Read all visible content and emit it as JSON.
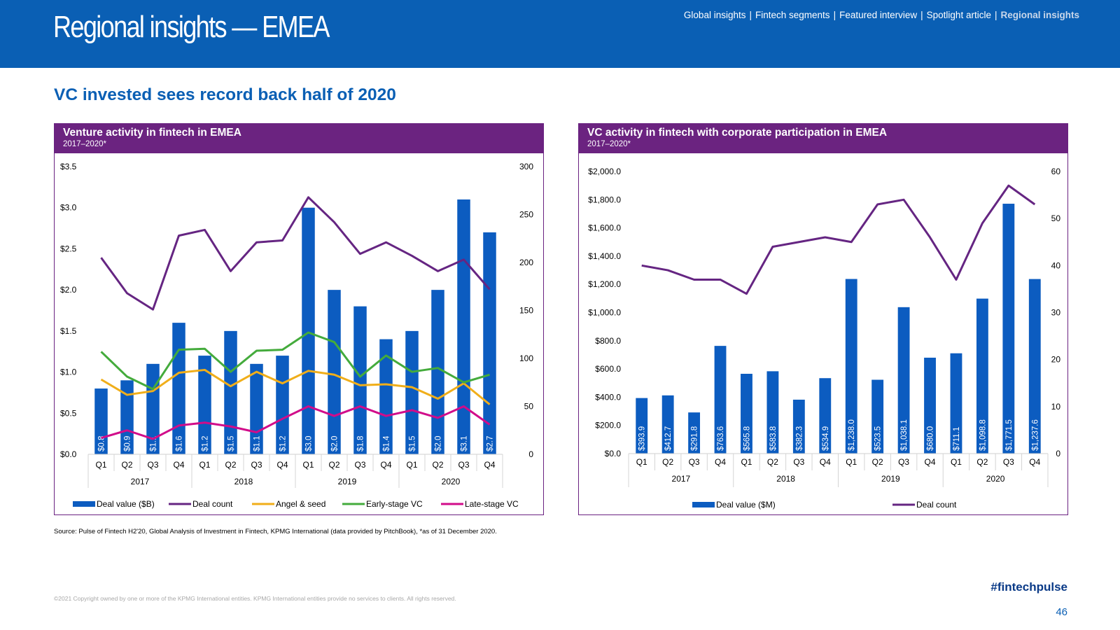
{
  "header": {
    "title": "Regional insights — EMEA",
    "nav": [
      {
        "label": "Global insights",
        "active": false
      },
      {
        "label": "Fintech segments",
        "active": false
      },
      {
        "label": "Featured interview",
        "active": false
      },
      {
        "label": "Spotlight article",
        "active": false
      },
      {
        "label": "Regional insights",
        "active": true
      }
    ],
    "nav_separator": "|"
  },
  "subtitle": "VC invested sees record back half of 2020",
  "panels": {
    "left": {
      "title": "Venture activity in fintech in EMEA",
      "subtitle": "2017–2020*"
    },
    "right": {
      "title": "VC activity in fintech with corporate participation in EMEA",
      "subtitle": "2017–2020*"
    }
  },
  "footer": {
    "source": "Source: Pulse of Fintech H2'20, Global Analysis of Investment in Fintech, KPMG International (data provided by PitchBook), *as of 31 December 2020.",
    "copyright": "©2021 Copyright owned by one or more of the KPMG International entities. KPMG International entities provide no services to clients. All rights reserved.",
    "hashtag": "#fintechpulse",
    "page_number": "46"
  },
  "colors": {
    "brand_blue": "#0a5fb4",
    "panel_purple": "#6b2380",
    "bar_blue": "#0c5cc0",
    "deal_count": "#652582",
    "angel_seed": "#f0ae1a",
    "early_stage": "#44ab3c",
    "late_stage": "#d10c8a"
  },
  "chart_data": [
    {
      "type": "bar",
      "categories": [
        "Q1",
        "Q2",
        "Q3",
        "Q4",
        "Q1",
        "Q2",
        "Q3",
        "Q4",
        "Q1",
        "Q2",
        "Q3",
        "Q4",
        "Q1",
        "Q2",
        "Q3",
        "Q4"
      ],
      "groups": [
        "2017",
        "2018",
        "2019",
        "2020"
      ],
      "y_left": {
        "ticks": [
          "$0.0",
          "$0.5",
          "$1.0",
          "$1.5",
          "$2.0",
          "$2.5",
          "$3.0",
          "$3.5"
        ],
        "range": [
          0,
          3.5
        ]
      },
      "y_right": {
        "ticks": [
          "0",
          "50",
          "100",
          "150",
          "200",
          "250",
          "300"
        ],
        "range": [
          0,
          300
        ]
      },
      "bars": {
        "name": "Deal value ($B)",
        "values": [
          0.8,
          0.9,
          1.1,
          1.6,
          1.2,
          1.5,
          1.1,
          1.2,
          3.0,
          2.0,
          1.8,
          1.4,
          1.5,
          2.0,
          3.1,
          2.7
        ],
        "labels": [
          "$0.8",
          "$0.9",
          "$1.1",
          "$1.6",
          "$1.2",
          "$1.5",
          "$1.1",
          "$1.2",
          "$3.0",
          "$2.0",
          "$1.8",
          "$1.4",
          "$1.5",
          "$2.0",
          "$3.1",
          "$2.7"
        ]
      },
      "lines": [
        {
          "name": "Deal count",
          "key": "deal_count",
          "values": [
            205,
            168,
            151,
            228,
            234,
            191,
            221,
            223,
            268,
            242,
            209,
            221,
            207,
            191,
            203,
            172
          ]
        },
        {
          "name": "Angel & seed",
          "key": "angel_seed",
          "values": [
            78,
            62,
            66,
            85,
            88,
            71,
            86,
            74,
            87,
            83,
            72,
            73,
            70,
            58,
            74,
            52
          ]
        },
        {
          "name": "Early-stage VC",
          "key": "early_stage",
          "values": [
            107,
            81,
            68,
            109,
            110,
            86,
            108,
            109,
            127,
            117,
            81,
            103,
            86,
            90,
            75,
            83
          ]
        },
        {
          "name": "Late-stage VC",
          "key": "late_stage",
          "values": [
            17,
            25,
            16,
            30,
            33,
            29,
            23,
            37,
            50,
            40,
            50,
            40,
            46,
            38,
            50,
            31
          ]
        }
      ],
      "legend_position": "bottom"
    },
    {
      "type": "bar",
      "categories": [
        "Q1",
        "Q2",
        "Q3",
        "Q4",
        "Q1",
        "Q2",
        "Q3",
        "Q4",
        "Q1",
        "Q2",
        "Q3",
        "Q4",
        "Q1",
        "Q2",
        "Q3",
        "Q4"
      ],
      "groups": [
        "2017",
        "2018",
        "2019",
        "2020"
      ],
      "y_left": {
        "ticks": [
          "$0.0",
          "$200.0",
          "$400.0",
          "$600.0",
          "$800.0",
          "$1,000.0",
          "$1,200.0",
          "$1,400.0",
          "$1,600.0",
          "$1,800.0",
          "$2,000.0"
        ],
        "range": [
          0,
          2000
        ]
      },
      "y_right": {
        "ticks": [
          "0",
          "10",
          "20",
          "30",
          "40",
          "50",
          "60"
        ],
        "range": [
          0,
          60
        ]
      },
      "bars": {
        "name": "Deal value ($M)",
        "values": [
          393.9,
          412.7,
          291.8,
          763.6,
          565.8,
          583.8,
          382.3,
          534.9,
          1238.0,
          523.5,
          1038.1,
          680.0,
          711.1,
          1098.8,
          1771.5,
          1237.6
        ],
        "labels": [
          "$393.9",
          "$412.7",
          "$291.8",
          "$763.6",
          "$565.8",
          "$583.8",
          "$382.3",
          "$534.9",
          "$1,238.0",
          "$523.5",
          "$1,038.1",
          "$680.0",
          "$711.1",
          "$1,098.8",
          "$1,771.5",
          "$1,237.6"
        ]
      },
      "lines": [
        {
          "name": "Deal count",
          "key": "deal_count",
          "values": [
            40,
            39,
            37,
            37,
            34,
            44,
            45,
            46,
            45,
            53,
            54,
            46,
            37,
            49,
            57,
            53
          ]
        }
      ],
      "legend_position": "bottom"
    }
  ]
}
